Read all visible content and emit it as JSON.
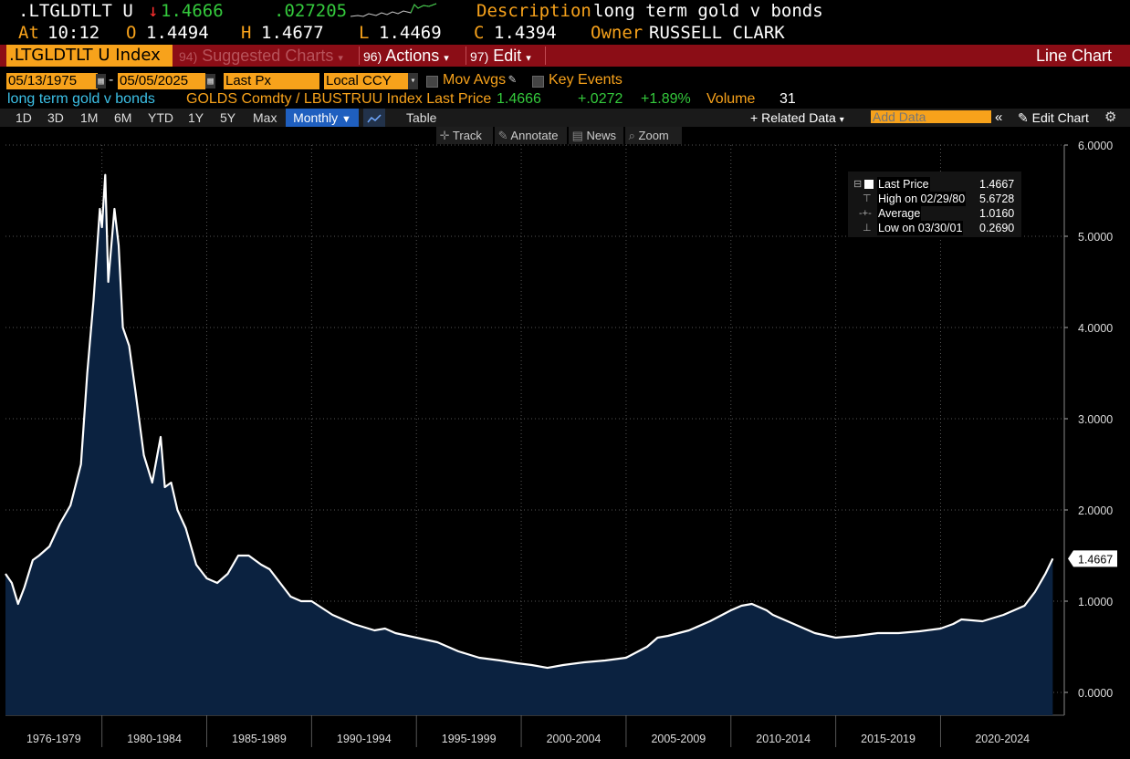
{
  "header": {
    "ticker": ".LTGLDTLT U",
    "arrow": "↓",
    "last": "1.4666",
    "change": ".027205",
    "desc_label": "Description",
    "desc_value": "long term gold v bonds",
    "at_label": "At",
    "at_value": "10:12",
    "o_label": "O",
    "o_value": "1.4494",
    "h_label": "H",
    "h_value": "1.4677",
    "l_label": "L",
    "l_value": "1.4469",
    "c_label": "C",
    "c_value": "1.4394",
    "owner_label": "Owner",
    "owner_value": "RUSSELL CLARK"
  },
  "menubar": {
    "index_tab": ".LTGLDTLT U Index",
    "suggested_num": "94)",
    "suggested": "Suggested Charts",
    "actions_num": "96)",
    "actions": "Actions",
    "edit_num": "97)",
    "edit": "Edit",
    "chart_type": "Line Chart"
  },
  "controls": {
    "start_date": "05/13/1975",
    "dash": "-",
    "end_date": "05/05/2025",
    "field": "Last Px",
    "currency": "Local CCY",
    "mov_avgs": "Mov Avgs",
    "key_events": "Key Events"
  },
  "infoline": {
    "name": "long term gold v bonds",
    "formula": "GOLDS Comdty / LBUSTRUU Index Last Price",
    "last": "1.4666",
    "change": "+.0272",
    "pct": "+1.89%",
    "volume_label": "Volume",
    "volume": "31"
  },
  "toolbar": {
    "periods": [
      "1D",
      "3D",
      "1M",
      "6M",
      "YTD",
      "1Y",
      "5Y",
      "Max"
    ],
    "frequency": "Monthly",
    "table": "Table",
    "related": "Related Data",
    "add_data_placeholder": "Add Data",
    "edit_chart": "Edit Chart"
  },
  "chart_tools": [
    "Track",
    "Annotate",
    "News",
    "Zoom"
  ],
  "legend": {
    "last_label": "Last Price",
    "last_value": "1.4667",
    "high_label": "High on 02/29/80",
    "high_value": "5.6728",
    "avg_label": "Average",
    "avg_value": "1.0160",
    "low_label": "Low on 03/30/01",
    "low_value": "0.2690"
  },
  "colors": {
    "accent_orange": "#f7a21b",
    "menubar_red": "#8b0d16",
    "area_fill": "#0b2240",
    "line": "#ffffff",
    "up_green": "#34c93c",
    "down_red": "#ff3030"
  },
  "chart_data": {
    "type": "area",
    "title": "",
    "xlabel": "",
    "ylabel": "",
    "ylim": [
      0,
      6
    ],
    "y_ticks": [
      "0.0000",
      "1.0000",
      "2.0000",
      "3.0000",
      "4.0000",
      "5.0000",
      "6.0000"
    ],
    "x_ticks": [
      "1976-1979",
      "1980-1984",
      "1985-1989",
      "1990-1994",
      "1995-1999",
      "2000-2004",
      "2005-2009",
      "2010-2014",
      "2015-2019",
      "2020-2024"
    ],
    "last_value_label": "1.4667",
    "grid": true,
    "x": [
      1975.4,
      1975.7,
      1976.0,
      1976.3,
      1976.7,
      1977.0,
      1977.5,
      1978.0,
      1978.5,
      1979.0,
      1979.3,
      1979.6,
      1979.9,
      1980.0,
      1980.16,
      1980.3,
      1980.6,
      1980.8,
      1981.0,
      1981.3,
      1981.6,
      1982.0,
      1982.4,
      1982.8,
      1983.0,
      1983.3,
      1983.6,
      1984.0,
      1984.5,
      1985.0,
      1985.5,
      1986.0,
      1986.5,
      1987.0,
      1987.6,
      1988.0,
      1988.5,
      1989.0,
      1989.5,
      1990.0,
      1991.0,
      1992.0,
      1993.0,
      1993.5,
      1994.0,
      1995.0,
      1996.0,
      1997.0,
      1998.0,
      1999.0,
      1999.8,
      2000.5,
      2001.25,
      2002.0,
      2003.0,
      2004.0,
      2005.0,
      2006.0,
      2006.5,
      2007.0,
      2008.0,
      2009.0,
      2010.0,
      2010.5,
      2011.0,
      2011.7,
      2012.0,
      2013.0,
      2013.5,
      2014.0,
      2015.0,
      2016.0,
      2017.0,
      2018.0,
      2019.0,
      2020.0,
      2020.6,
      2021.0,
      2022.0,
      2023.0,
      2024.0,
      2024.5,
      2025.0,
      2025.35
    ],
    "y": [
      1.3,
      1.2,
      0.97,
      1.15,
      1.45,
      1.5,
      1.6,
      1.85,
      2.05,
      2.5,
      3.5,
      4.3,
      5.3,
      5.1,
      5.6728,
      4.5,
      5.3,
      4.9,
      4.0,
      3.8,
      3.3,
      2.6,
      2.3,
      2.8,
      2.25,
      2.3,
      2.0,
      1.8,
      1.4,
      1.25,
      1.2,
      1.3,
      1.5,
      1.5,
      1.4,
      1.35,
      1.2,
      1.05,
      1.0,
      1.0,
      0.85,
      0.75,
      0.68,
      0.7,
      0.65,
      0.6,
      0.55,
      0.45,
      0.38,
      0.35,
      0.32,
      0.3,
      0.269,
      0.3,
      0.33,
      0.35,
      0.38,
      0.5,
      0.6,
      0.62,
      0.68,
      0.78,
      0.9,
      0.95,
      0.97,
      0.9,
      0.85,
      0.75,
      0.7,
      0.65,
      0.6,
      0.62,
      0.65,
      0.65,
      0.67,
      0.7,
      0.75,
      0.8,
      0.78,
      0.85,
      0.95,
      1.1,
      1.3,
      1.4667
    ]
  }
}
